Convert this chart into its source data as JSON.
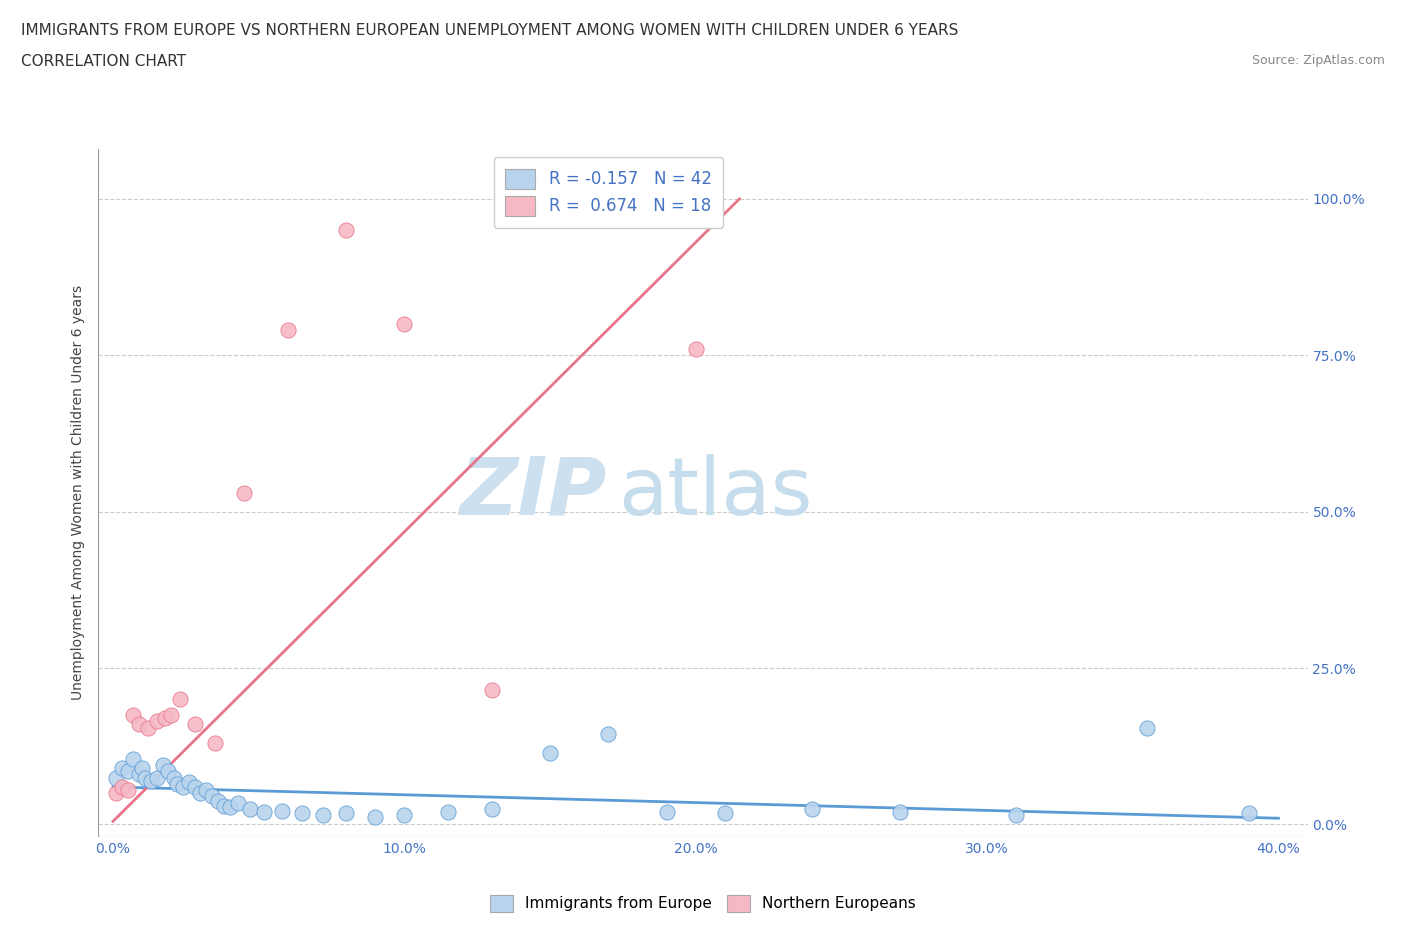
{
  "title": "IMMIGRANTS FROM EUROPE VS NORTHERN EUROPEAN UNEMPLOYMENT AMONG WOMEN WITH CHILDREN UNDER 6 YEARS",
  "subtitle": "CORRELATION CHART",
  "source": "Source: ZipAtlas.com",
  "xlim": [
    -0.005,
    0.41
  ],
  "ylim": [
    -0.02,
    1.08
  ],
  "ylabel": "Unemployment Among Women with Children Under 6 years",
  "legend_label1": "Immigrants from Europe",
  "legend_label2": "Northern Europeans",
  "color_blue": "#b8d4ed",
  "color_pink": "#f5b8c4",
  "trendline_blue": "#5b9bd5",
  "trendline_pink": "#e8748a",
  "watermark_zip_color": "#cce0f0",
  "watermark_atlas_color": "#c5dded",
  "blue_scatter_x": [
    0.001,
    0.003,
    0.005,
    0.007,
    0.009,
    0.01,
    0.011,
    0.013,
    0.015,
    0.017,
    0.019,
    0.021,
    0.022,
    0.024,
    0.026,
    0.028,
    0.03,
    0.032,
    0.034,
    0.036,
    0.038,
    0.04,
    0.043,
    0.047,
    0.052,
    0.058,
    0.065,
    0.072,
    0.08,
    0.09,
    0.1,
    0.115,
    0.13,
    0.15,
    0.17,
    0.19,
    0.21,
    0.24,
    0.27,
    0.31,
    0.355,
    0.39
  ],
  "blue_scatter_y": [
    0.075,
    0.09,
    0.085,
    0.105,
    0.08,
    0.09,
    0.075,
    0.07,
    0.075,
    0.095,
    0.085,
    0.075,
    0.065,
    0.06,
    0.068,
    0.06,
    0.05,
    0.055,
    0.045,
    0.038,
    0.03,
    0.028,
    0.035,
    0.025,
    0.02,
    0.022,
    0.018,
    0.015,
    0.018,
    0.012,
    0.015,
    0.02,
    0.025,
    0.115,
    0.145,
    0.02,
    0.018,
    0.025,
    0.02,
    0.015,
    0.155,
    0.018
  ],
  "pink_scatter_x": [
    0.001,
    0.003,
    0.005,
    0.007,
    0.009,
    0.012,
    0.015,
    0.018,
    0.02,
    0.023,
    0.028,
    0.035,
    0.045,
    0.06,
    0.08,
    0.1,
    0.13,
    0.2
  ],
  "pink_scatter_y": [
    0.05,
    0.06,
    0.055,
    0.175,
    0.16,
    0.155,
    0.165,
    0.17,
    0.175,
    0.2,
    0.16,
    0.13,
    0.53,
    0.79,
    0.95,
    0.8,
    0.215,
    0.76
  ],
  "blue_trend_x": [
    0.0,
    0.4
  ],
  "blue_trend_y": [
    0.06,
    0.01
  ],
  "pink_trend_x": [
    0.0,
    0.215
  ],
  "pink_trend_y": [
    0.005,
    1.0
  ],
  "x_tick_positions": [
    0.0,
    0.1,
    0.2,
    0.3,
    0.4
  ],
  "x_tick_labels": [
    "0.0%",
    "10.0%",
    "20.0%",
    "30.0%",
    "40.0%"
  ],
  "y_tick_positions": [
    0.0,
    0.25,
    0.5,
    0.75,
    1.0
  ],
  "y_tick_labels": [
    "0.0%",
    "25.0%",
    "50.0%",
    "75.0%",
    "100.0%"
  ]
}
